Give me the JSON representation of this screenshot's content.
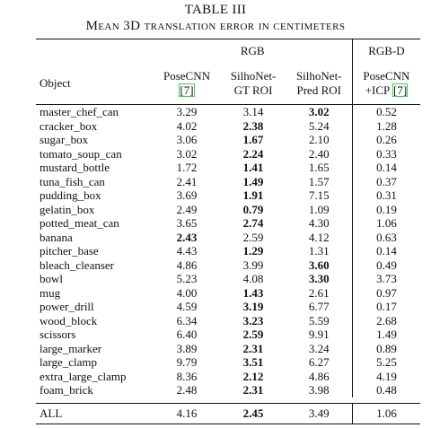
{
  "caption": {
    "table_number": "TABLE III",
    "title": "Mean 3D translation error in centimeters"
  },
  "header": {
    "group_rgb": "RGB",
    "group_rgbd": "RGB-D",
    "object_col": "Object",
    "col1_line1": "PoseCNN",
    "col1_cite": "[7]",
    "col2_line1": "SilhoNet-",
    "col2_line2": "GT ROI",
    "col3_line1": "SilhoNet-",
    "col3_line2": "Pred ROI",
    "col4_line1": "PoseCNN",
    "col4_line2_prefix": "+ICP ",
    "col4_cite": "[7]"
  },
  "rows": [
    {
      "object": "master_chef_can",
      "posecnn": "3.29",
      "gt": "3.14",
      "pred": "3.02",
      "icp": "0.52",
      "bold": "pred"
    },
    {
      "object": "cracker_box",
      "posecnn": "4.02",
      "gt": "2.38",
      "pred": "5.24",
      "icp": "1.28",
      "bold": "gt"
    },
    {
      "object": "sugar_box",
      "posecnn": "3.06",
      "gt": "1.67",
      "pred": "2.10",
      "icp": "0.26",
      "bold": "gt"
    },
    {
      "object": "tomato_soup_can",
      "posecnn": "3.02",
      "gt": "2.24",
      "pred": "2.40",
      "icp": "0.33",
      "bold": "gt"
    },
    {
      "object": "mustard_bottle",
      "posecnn": "1.72",
      "gt": "1.41",
      "pred": "1.65",
      "icp": "0.14",
      "bold": "gt"
    },
    {
      "object": "tuna_fish_can",
      "posecnn": "2.41",
      "gt": "1.49",
      "pred": "1.57",
      "icp": "0.37",
      "bold": "gt"
    },
    {
      "object": "pudding_box",
      "posecnn": "3.69",
      "gt": "1.91",
      "pred": "7.15",
      "icp": "0.31",
      "bold": "gt"
    },
    {
      "object": "gelatin_box",
      "posecnn": "2.49",
      "gt": "0.79",
      "pred": "1.09",
      "icp": "0.19",
      "bold": "gt"
    },
    {
      "object": "potted_meat_can",
      "posecnn": "3.65",
      "gt": "2.74",
      "pred": "4.30",
      "icp": "1.06",
      "bold": "gt"
    },
    {
      "object": "banana",
      "posecnn": "2.43",
      "gt": "2.59",
      "pred": "4.12",
      "icp": "0.63",
      "bold": "posecnn"
    },
    {
      "object": "pitcher_base",
      "posecnn": "4.43",
      "gt": "1.29",
      "pred": "1.31",
      "icp": "0.14",
      "bold": "gt"
    },
    {
      "object": "bleach_cleanser",
      "posecnn": "4.86",
      "gt": "3.99",
      "pred": "3.60",
      "icp": "0.49",
      "bold": "pred"
    },
    {
      "object": "bowl",
      "posecnn": "5.23",
      "gt": "4.08",
      "pred": "3.30",
      "icp": "3.73",
      "bold": "pred"
    },
    {
      "object": "mug",
      "posecnn": "4.00",
      "gt": "1.43",
      "pred": "2.61",
      "icp": "0.97",
      "bold": "gt"
    },
    {
      "object": "power_drill",
      "posecnn": "4.59",
      "gt": "3.19",
      "pred": "6.77",
      "icp": "0.17",
      "bold": "gt"
    },
    {
      "object": "wood_block",
      "posecnn": "6.34",
      "gt": "3.23",
      "pred": "5.59",
      "icp": "2.68",
      "bold": "gt"
    },
    {
      "object": "scissors",
      "posecnn": "6.40",
      "gt": "2.59",
      "pred": "9.91",
      "icp": "1.49",
      "bold": "gt"
    },
    {
      "object": "large_marker",
      "posecnn": "3.89",
      "gt": "2.31",
      "pred": "3.24",
      "icp": "0.89",
      "bold": "gt"
    },
    {
      "object": "large_clamp",
      "posecnn": "9.79",
      "gt": "3.51",
      "pred": "6.27",
      "icp": "5.25",
      "bold": "gt"
    },
    {
      "object": "extra_large_clamp",
      "posecnn": "8.36",
      "gt": "2.12",
      "pred": "4.86",
      "icp": "4.19",
      "bold": "gt"
    },
    {
      "object": "foam_brick",
      "posecnn": "2.48",
      "gt": "2.31",
      "pred": "3.98",
      "icp": "0.48",
      "bold": "gt"
    }
  ],
  "all_row": {
    "object": "ALL",
    "posecnn": "4.16",
    "gt": "2.45",
    "pred": "3.49",
    "icp": "1.06",
    "bold": "gt"
  }
}
